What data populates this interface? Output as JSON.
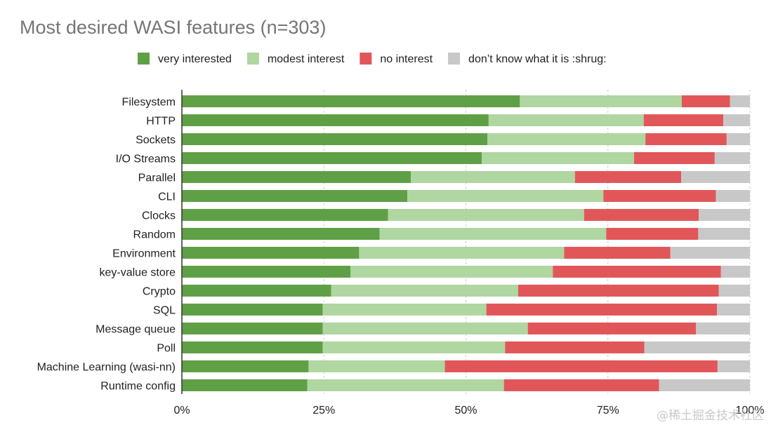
{
  "chart_data": {
    "type": "bar",
    "orientation": "horizontal",
    "stacked": "percent",
    "title": "Most desired WASI features (n=303)",
    "legend_position": "top",
    "categories": [
      "Filesystem",
      "HTTP",
      "Sockets",
      "I/O Streams",
      "Parallel",
      "CLI",
      "Clocks",
      "Random",
      "Environment",
      "key-value store",
      "Crypto",
      "SQL",
      "Message queue",
      "Poll",
      "Machine Learning (wasi-nn)",
      "Runtime config"
    ],
    "series": [
      {
        "name": "very interested",
        "color": "#5fa046",
        "values": [
          59.5,
          54.0,
          53.8,
          52.8,
          40.3,
          39.7,
          36.3,
          34.8,
          31.2,
          29.7,
          26.3,
          24.8,
          24.8,
          24.8,
          22.3,
          22.1
        ]
      },
      {
        "name": "modest interest",
        "color": "#b0d6a1",
        "values": [
          28.5,
          27.3,
          27.8,
          26.8,
          28.9,
          34.5,
          34.5,
          39.9,
          36.1,
          35.6,
          32.9,
          28.8,
          36.1,
          32.1,
          24.0,
          34.6
        ]
      },
      {
        "name": "no interest",
        "color": "#e15759",
        "values": [
          8.5,
          14.0,
          14.3,
          14.2,
          18.7,
          19.8,
          20.2,
          16.2,
          18.7,
          29.6,
          35.3,
          40.6,
          29.6,
          24.5,
          48.0,
          27.3
        ]
      },
      {
        "name": "don’t know what it is :shrug:",
        "color": "#c8c8c8",
        "values": [
          3.5,
          4.7,
          4.1,
          6.2,
          12.1,
          6.0,
          9.0,
          9.1,
          14.0,
          5.1,
          5.5,
          5.8,
          9.5,
          18.6,
          5.7,
          16.0
        ]
      }
    ],
    "xlim": [
      0,
      100
    ],
    "xticks": [
      "0%",
      "25%",
      "50%",
      "75%",
      "100%"
    ],
    "grid": true
  },
  "watermark": "@稀土掘金技术社区"
}
